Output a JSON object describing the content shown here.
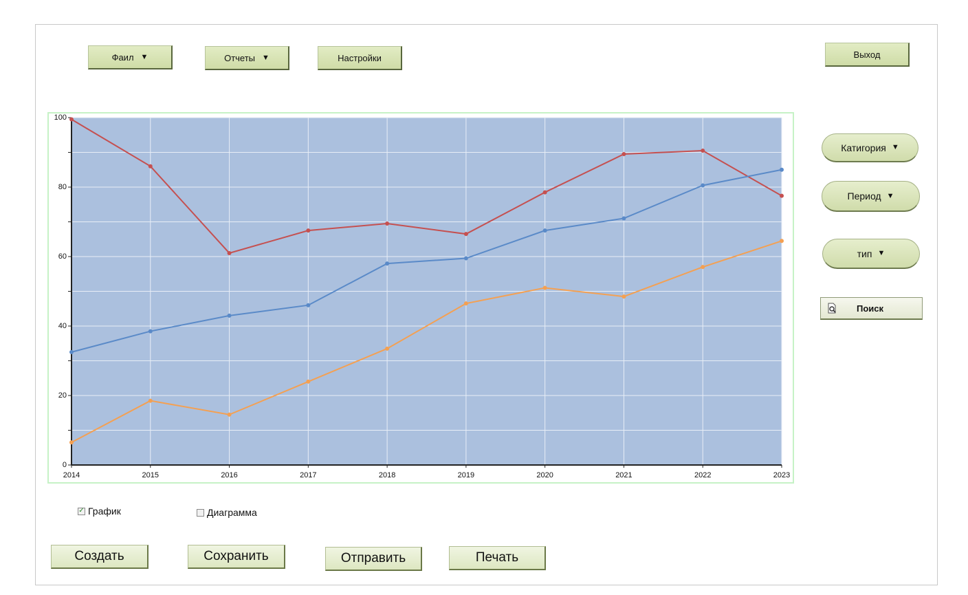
{
  "toolbar": {
    "file_label": "Фаил",
    "reports_label": "Отчеты",
    "settings_label": "Настройки",
    "exit_label": "Выход",
    "caret": "▼"
  },
  "filters": {
    "category_label": "Катигория",
    "period_label": "Период",
    "type_label": "тип",
    "search_label": "Поиск"
  },
  "options": {
    "graph_label": "График",
    "graph_checked": true,
    "diagram_label": "Диаграмма",
    "diagram_checked": false
  },
  "actions": {
    "create_label": "Создать",
    "save_label": "Сохранить",
    "send_label": "Отправить",
    "print_label": "Печать"
  },
  "colors": {
    "plot_bg": "#abc0de",
    "grid": "#e8eef7",
    "series": [
      "#c55050",
      "#5a8ac8",
      "#f4a052"
    ]
  },
  "chart_data": {
    "type": "line",
    "x": [
      2014,
      2015,
      2016,
      2017,
      2018,
      2019,
      2020,
      2021,
      2022,
      2023
    ],
    "series": [
      {
        "values": [
          99.5,
          86,
          61,
          67.5,
          69.5,
          66.5,
          78.5,
          89.5,
          90.5,
          77.5
        ]
      },
      {
        "values": [
          32.5,
          38.5,
          43,
          46,
          58,
          59.5,
          67.5,
          71,
          80.5,
          85
        ]
      },
      {
        "values": [
          6.5,
          18.5,
          14.5,
          24,
          33.5,
          46.5,
          51,
          48.5,
          57,
          64.5
        ]
      }
    ],
    "ylim": [
      0,
      100
    ],
    "yticks": [
      0,
      20,
      40,
      60,
      80,
      100
    ],
    "grid": true,
    "title": "",
    "xlabel": "",
    "ylabel": ""
  }
}
